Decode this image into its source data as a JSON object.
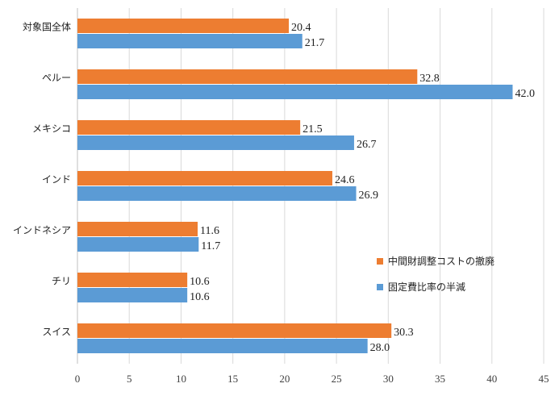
{
  "chart_data": {
    "type": "bar",
    "orientation": "horizontal",
    "categories": [
      "対象国全体",
      "ペルー",
      "メキシコ",
      "インド",
      "インドネシア",
      "チリ",
      "スイス"
    ],
    "series": [
      {
        "name": "中間財調整コストの撤廃",
        "color": "#ed7d31",
        "values": [
          20.4,
          32.8,
          21.5,
          24.6,
          11.6,
          10.6,
          30.3
        ]
      },
      {
        "name": "固定費比率の半減",
        "color": "#5b9bd5",
        "values": [
          21.7,
          42.0,
          26.7,
          26.9,
          11.7,
          10.6,
          28.0
        ]
      }
    ],
    "xlim": [
      0,
      45
    ],
    "xticks": [
      0,
      5,
      10,
      15,
      20,
      25,
      30,
      35,
      40,
      45
    ],
    "grid": "vertical",
    "legend": "right-middle",
    "data_labels": true
  }
}
